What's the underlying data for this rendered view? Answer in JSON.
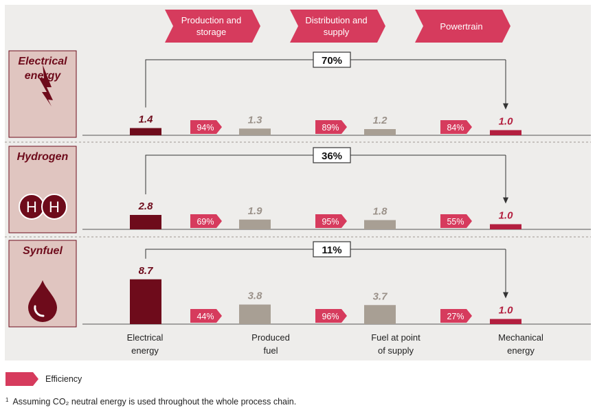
{
  "colors": {
    "panel_bg": "#eeedeb",
    "row_label_bg": "#e0c5c0",
    "dark_red": "#6e0b1b",
    "accent": "#d63b5d",
    "grey_bar": "#a89f94",
    "grey_text": "#9a9189"
  },
  "stages": [
    "Production and storage",
    "Distribution and supply",
    "Powertrain"
  ],
  "chart_data": {
    "type": "bar",
    "categories": [
      "Electrical energy",
      "Produced fuel",
      "Fuel at point of supply",
      "Mechanical energy"
    ],
    "rows": [
      {
        "name": "Electrical energy",
        "icon": "lightning-icon",
        "values": [
          1.4,
          1.3,
          1.2,
          1.0
        ],
        "efficiencies": [
          "94%",
          "89%",
          "84%"
        ],
        "overall": "70%"
      },
      {
        "name": "Hydrogen",
        "icon": "hydrogen-molecule-icon",
        "values": [
          2.8,
          1.9,
          1.8,
          1.0
        ],
        "efficiencies": [
          "69%",
          "95%",
          "55%"
        ],
        "overall": "36%"
      },
      {
        "name": "Synfuel",
        "icon": "droplet-icon",
        "values": [
          8.7,
          3.8,
          3.7,
          1.0
        ],
        "efficiencies": [
          "44%",
          "96%",
          "27%"
        ],
        "overall": "11%"
      }
    ],
    "bar_colors": [
      "#6e0b1b",
      "#a89f94",
      "#a89f94",
      "#b31f3f"
    ],
    "value_label_colors": [
      "#6e0b1b",
      "#9a9189",
      "#9a9189",
      "#b31f3f"
    ]
  },
  "legend": {
    "label": "Efficiency"
  },
  "footnote": {
    "marker": "1",
    "text": "Assuming CO₂ neutral energy is used throughout the whole process chain."
  }
}
